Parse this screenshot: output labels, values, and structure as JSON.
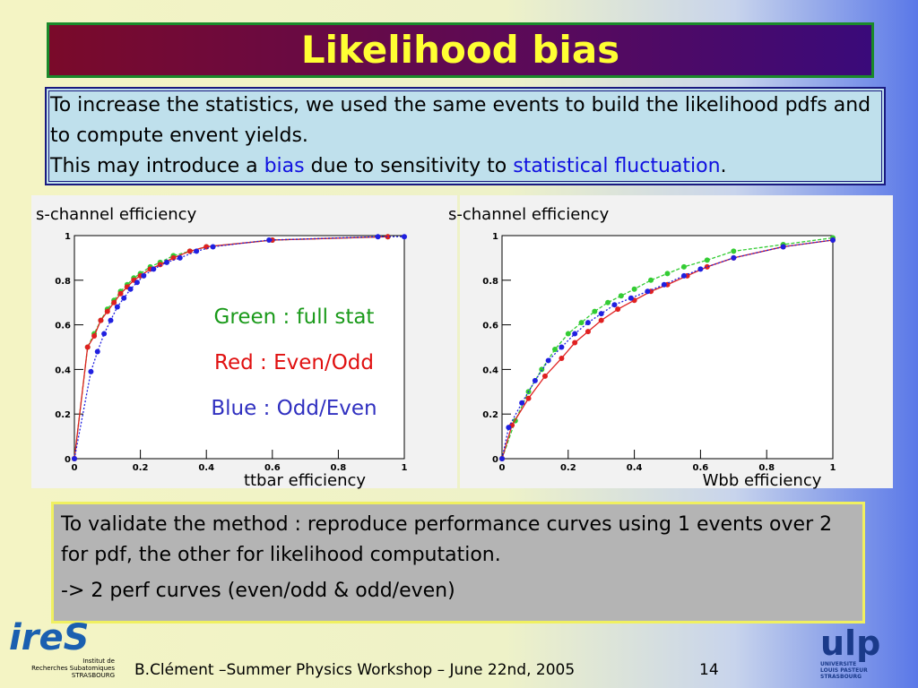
{
  "header": {
    "title": "Likelihood bias"
  },
  "intro": {
    "line1": "To increase the statistics, we used the same events to build the likelihood pdfs and to compute envent yields.",
    "line2": [
      "This may introduce a ",
      "bias",
      " due to sensitivity to ",
      "statistical fluctuation",
      "."
    ]
  },
  "chart_data": [
    {
      "type": "line",
      "y_label": "s-channel efficiency",
      "x_label": "ttbar efficiency",
      "xlim": [
        0,
        1
      ],
      "ylim": [
        0,
        1
      ],
      "xticks": [
        0,
        0.2,
        0.4,
        0.6,
        0.8,
        1
      ],
      "yticks": [
        0,
        0.2,
        0.4,
        0.6,
        0.8,
        1
      ],
      "annotations": [
        {
          "text": "Green : full stat",
          "color": "#1a9a1a"
        },
        {
          "text": "Red : Even/Odd",
          "color": "#e01010"
        },
        {
          "text": "Blue : Odd/Even",
          "color": "#3030c0"
        }
      ],
      "series": [
        {
          "color": "#33cc33",
          "x": [
            0,
            0.04,
            0.06,
            0.08,
            0.1,
            0.12,
            0.14,
            0.16,
            0.18,
            0.2,
            0.23,
            0.26,
            0.3,
            0.35,
            0.4,
            0.6,
            0.95
          ],
          "values": [
            0,
            0.5,
            0.56,
            0.62,
            0.67,
            0.71,
            0.75,
            0.78,
            0.81,
            0.83,
            0.86,
            0.88,
            0.91,
            0.93,
            0.95,
            0.98,
            0.995
          ]
        },
        {
          "color": "#e02020",
          "x": [
            0,
            0.04,
            0.06,
            0.08,
            0.1,
            0.12,
            0.14,
            0.16,
            0.18,
            0.2,
            0.23,
            0.26,
            0.3,
            0.35,
            0.4,
            0.6,
            0.95
          ],
          "values": [
            0,
            0.5,
            0.55,
            0.62,
            0.66,
            0.7,
            0.74,
            0.77,
            0.8,
            0.82,
            0.85,
            0.87,
            0.9,
            0.93,
            0.95,
            0.98,
            0.995
          ]
        },
        {
          "color": "#2020e0",
          "x": [
            0,
            0.05,
            0.07,
            0.09,
            0.11,
            0.13,
            0.15,
            0.17,
            0.19,
            0.21,
            0.24,
            0.28,
            0.32,
            0.37,
            0.42,
            0.59,
            0.92,
            1
          ],
          "values": [
            0,
            0.39,
            0.48,
            0.56,
            0.62,
            0.68,
            0.72,
            0.76,
            0.79,
            0.82,
            0.85,
            0.88,
            0.9,
            0.93,
            0.95,
            0.98,
            0.995,
            0.995
          ]
        }
      ]
    },
    {
      "type": "line",
      "y_label": "s-channel efficiency",
      "x_label": "Wbb efficiency",
      "xlim": [
        0,
        1
      ],
      "ylim": [
        0,
        1
      ],
      "xticks": [
        0,
        0.2,
        0.4,
        0.6,
        0.8,
        1
      ],
      "yticks": [
        0,
        0.2,
        0.4,
        0.6,
        0.8,
        1
      ],
      "series": [
        {
          "color": "#33cc33",
          "x": [
            0,
            0.04,
            0.08,
            0.12,
            0.16,
            0.2,
            0.24,
            0.28,
            0.32,
            0.36,
            0.4,
            0.45,
            0.5,
            0.55,
            0.62,
            0.7,
            0.85,
            1
          ],
          "values": [
            0,
            0.17,
            0.3,
            0.4,
            0.49,
            0.56,
            0.61,
            0.66,
            0.7,
            0.73,
            0.76,
            0.8,
            0.83,
            0.86,
            0.89,
            0.93,
            0.96,
            0.99
          ]
        },
        {
          "color": "#e02020",
          "x": [
            0,
            0.03,
            0.08,
            0.13,
            0.18,
            0.22,
            0.26,
            0.3,
            0.35,
            0.4,
            0.45,
            0.5,
            0.56,
            0.62,
            0.7,
            0.85,
            1
          ],
          "values": [
            0,
            0.15,
            0.27,
            0.37,
            0.45,
            0.52,
            0.57,
            0.62,
            0.67,
            0.71,
            0.75,
            0.78,
            0.82,
            0.86,
            0.9,
            0.95,
            0.98
          ]
        },
        {
          "color": "#2020e0",
          "x": [
            0,
            0.02,
            0.06,
            0.1,
            0.14,
            0.18,
            0.22,
            0.26,
            0.3,
            0.34,
            0.39,
            0.44,
            0.49,
            0.55,
            0.6,
            0.7,
            0.85,
            1
          ],
          "values": [
            0,
            0.14,
            0.25,
            0.35,
            0.44,
            0.5,
            0.56,
            0.61,
            0.65,
            0.69,
            0.72,
            0.75,
            0.78,
            0.82,
            0.85,
            0.9,
            0.95,
            0.98
          ]
        }
      ]
    }
  ],
  "conclusion": {
    "line1": "To validate the method : reproduce performance curves using 1 events over 2 for pdf, the other for likelihood computation.",
    "line2": "-> 2 perf curves (even/odd & odd/even)"
  },
  "footer": {
    "text": "B.Clément –Summer Physics Workshop – June 22nd, 2005",
    "page": "14"
  },
  "logos": {
    "left": "ireS",
    "left_caption": [
      "Institut de",
      "Recherches Subatomiques",
      "STRASBOURG"
    ],
    "right": "ulp",
    "right_caption": [
      "UNIVERSITE",
      "LOUIS PASTEUR",
      "STRASBOURG"
    ]
  }
}
